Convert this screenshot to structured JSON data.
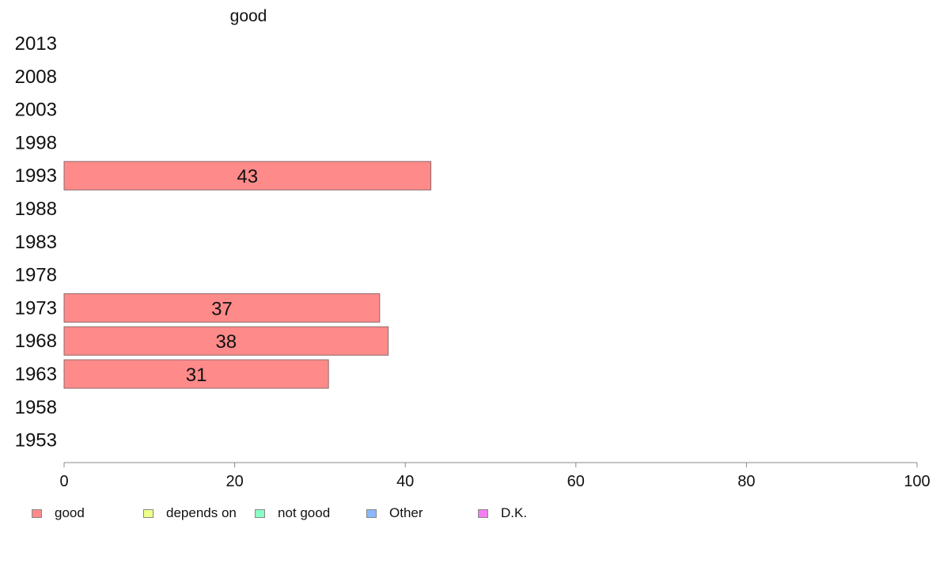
{
  "chart_data": {
    "type": "bar",
    "orientation": "horizontal",
    "panel_title": "good",
    "categories": [
      "2013",
      "2008",
      "2003",
      "1998",
      "1993",
      "1988",
      "1983",
      "1978",
      "1973",
      "1968",
      "1963",
      "1958",
      "1953"
    ],
    "series": [
      {
        "name": "good",
        "color": "#ff8a8a",
        "values": [
          null,
          null,
          null,
          null,
          43,
          null,
          null,
          null,
          37,
          38,
          31,
          null,
          null
        ]
      }
    ],
    "data_labels": [
      "",
      "",
      "",
      "",
      "43",
      "",
      "",
      "",
      "37",
      "38",
      "31",
      "",
      ""
    ],
    "xlim": [
      0,
      100
    ],
    "xticks": [
      0,
      20,
      40,
      60,
      80,
      100
    ],
    "xtick_labels": [
      "0",
      "20",
      "40",
      "60",
      "80",
      "100"
    ],
    "grid": false,
    "legend_position": "bottom-left"
  },
  "legend": {
    "items": [
      {
        "label": "good",
        "color": "#ff8a8a"
      },
      {
        "label": "depends on",
        "color": "#efff8a"
      },
      {
        "label": "not good",
        "color": "#8affc4"
      },
      {
        "label": "Other",
        "color": "#8ab9ff"
      },
      {
        "label": "D.K.",
        "color": "#f27ef2"
      }
    ]
  }
}
